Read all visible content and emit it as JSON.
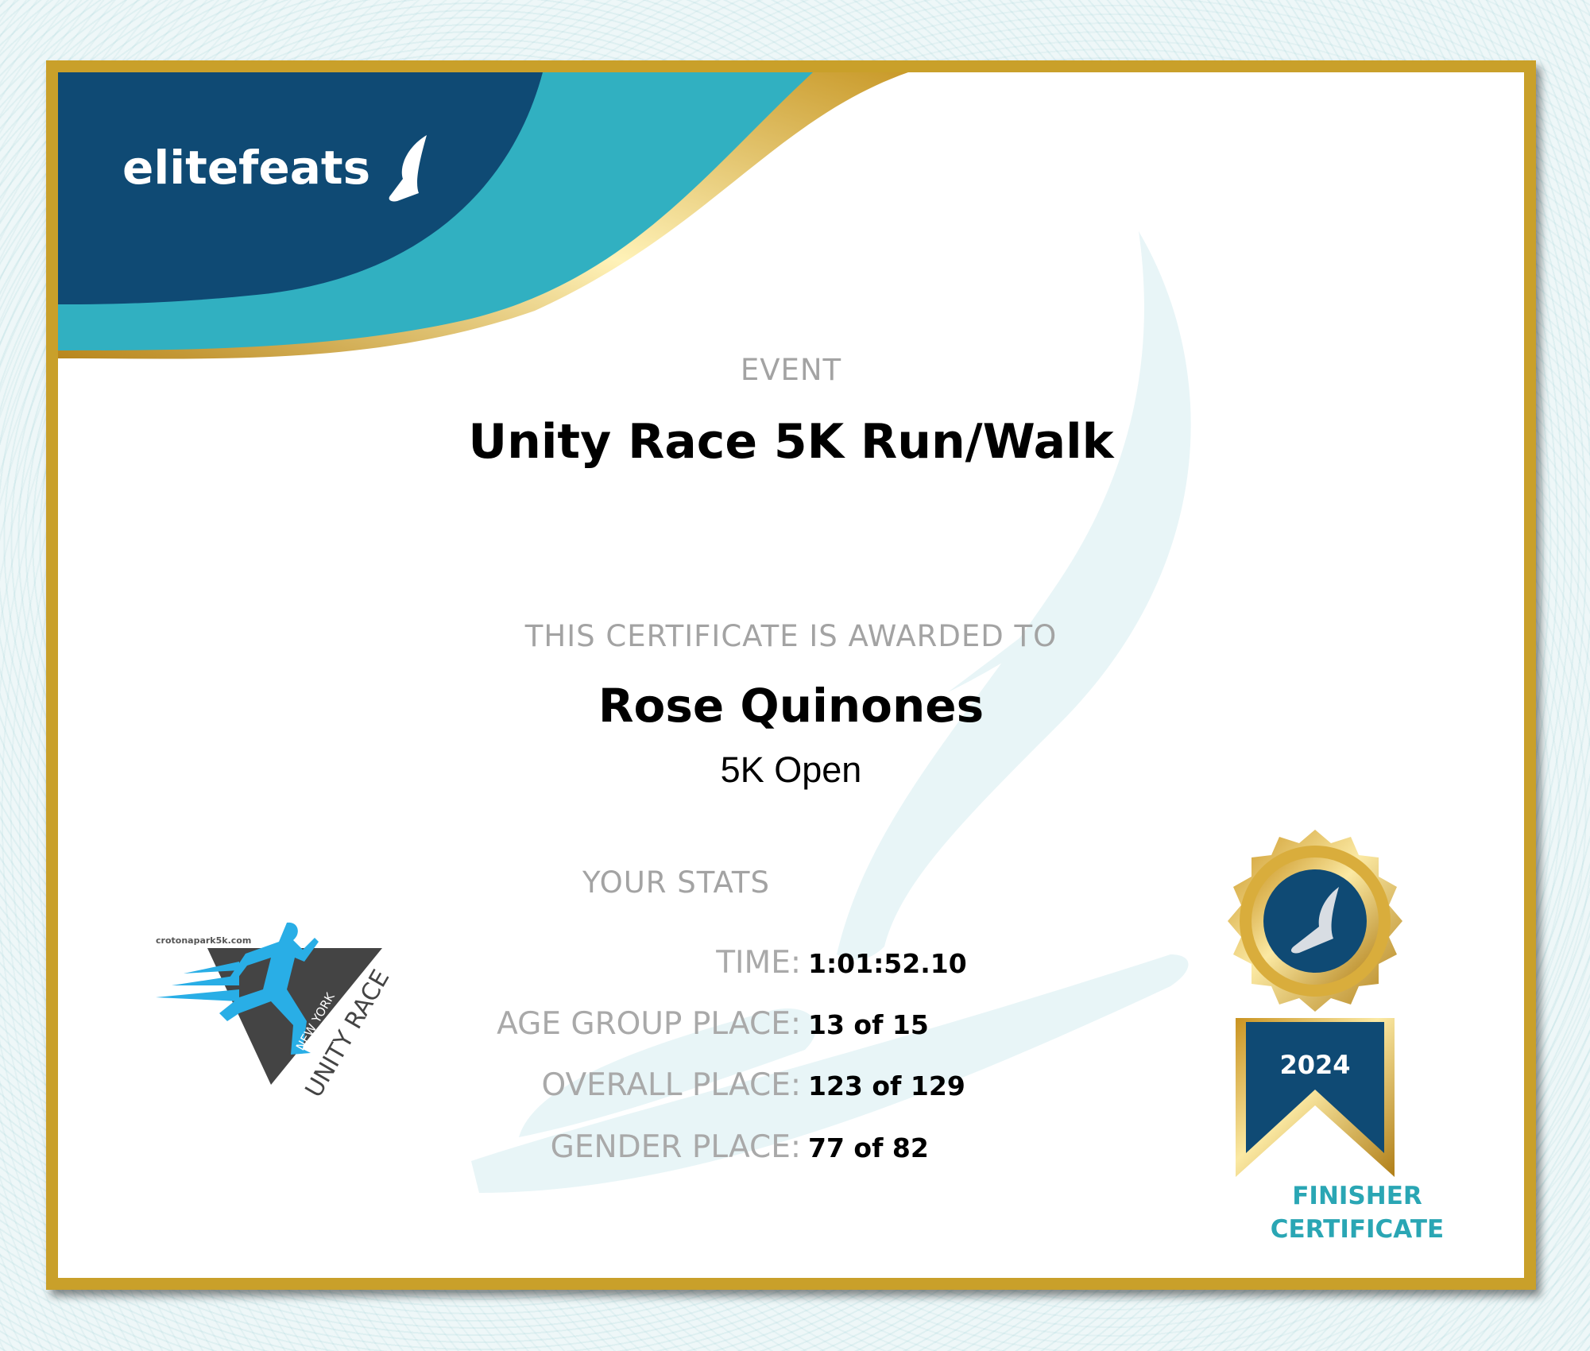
{
  "brand": {
    "name": "elitefeats",
    "icon": "winged-foot-icon"
  },
  "event": {
    "label": "EVENT",
    "title": "Unity Race 5K Run/Walk"
  },
  "award": {
    "label": "THIS CERTIFICATE IS AWARDED TO",
    "name": "Rose Quinones",
    "division": "5K Open"
  },
  "stats": {
    "label": "YOUR STATS",
    "rows": [
      {
        "key": "TIME:",
        "value": "1:01:52.10"
      },
      {
        "key": "AGE GROUP PLACE:",
        "value": "13 of 15"
      },
      {
        "key": "OVERALL PLACE:",
        "value": "123 of 129"
      },
      {
        "key": "GENDER PLACE:",
        "value": "77 of 82"
      }
    ]
  },
  "race_logo": {
    "url_text": "crotonapark5k.com",
    "line1": "NEW YORK",
    "line2": "UNITY RACE"
  },
  "medal": {
    "year": "2024",
    "caption_line1": "FINISHER",
    "caption_line2": "CERTIFICATE"
  },
  "colors": {
    "navy": "#0f4a74",
    "teal": "#31b0c1",
    "gold": "#c9a02a",
    "race_blue": "#29aee6"
  }
}
